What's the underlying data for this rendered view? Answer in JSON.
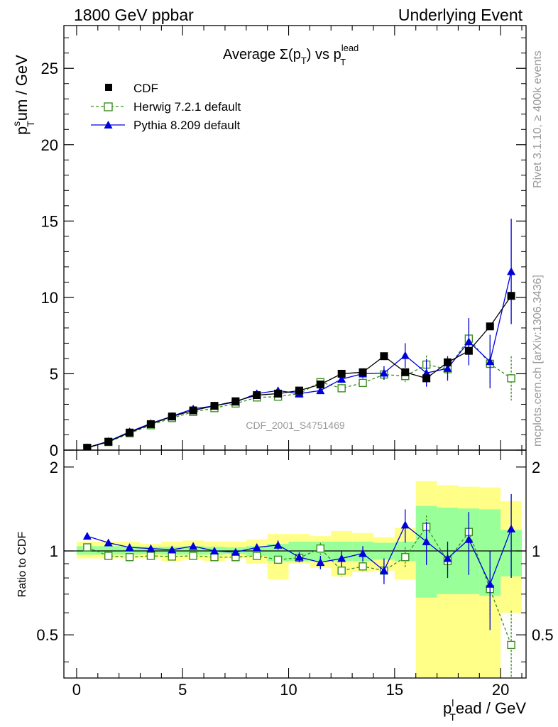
{
  "header": {
    "left": "1800 GeV ppbar",
    "right": "Underlying Event"
  },
  "side_labels": {
    "rivet": "Rivet 3.1.10, ≥ 400k events",
    "mcplots": "mcplots.cern.ch [arXiv:1306.3436]"
  },
  "colors": {
    "data": "#000000",
    "herwig": "#3a8f1e",
    "pythia": "#0000dd",
    "band_inner": "#99ff99",
    "band_outer": "#ffff88"
  },
  "chart_data": [
    {
      "type": "scatter",
      "panel": "main",
      "title_parts": {
        "main": "Average Σ(p",
        "sub_T": "T",
        "mid": ") vs p",
        "sup": "lead",
        "sub2": "T"
      },
      "ylabel_parts": {
        "p": "p",
        "sup": "s",
        "sub": "T",
        "rest": "um / GeV"
      },
      "watermark": "CDF_2001_S4751469",
      "xlim": [
        -0.6,
        21.2
      ],
      "ylim": [
        0,
        27.8
      ],
      "yticks": [
        0,
        5,
        10,
        15,
        20,
        25
      ],
      "legend": {
        "position": "top-left",
        "entries": [
          {
            "key": "data",
            "label": "CDF"
          },
          {
            "key": "herwig",
            "label": "Herwig 7.2.1 default"
          },
          {
            "key": "pythia",
            "label": "Pythia 8.209 default"
          }
        ]
      },
      "x": [
        0.5,
        1.5,
        2.5,
        3.5,
        4.5,
        5.5,
        6.5,
        7.5,
        8.5,
        9.5,
        10.5,
        11.5,
        12.5,
        13.5,
        14.5,
        15.5,
        16.5,
        17.5,
        18.5,
        19.5,
        20.5
      ],
      "series": [
        {
          "key": "data",
          "name": "CDF",
          "marker": "square-filled",
          "values": [
            0.15,
            0.55,
            1.15,
            1.7,
            2.2,
            2.6,
            2.9,
            3.2,
            3.6,
            3.7,
            3.9,
            4.3,
            5.0,
            5.1,
            6.15,
            5.1,
            4.7,
            5.75,
            6.5,
            8.1,
            10.1
          ]
        },
        {
          "key": "herwig",
          "name": "Herwig 7.2.1 default",
          "marker": "square-open",
          "dashed": true,
          "values": [
            0.15,
            0.53,
            1.1,
            1.63,
            2.1,
            2.5,
            2.75,
            3.05,
            3.45,
            3.5,
            3.7,
            4.45,
            4.05,
            4.4,
            4.95,
            4.85,
            5.6,
            5.3,
            7.3,
            5.65,
            4.7
          ],
          "errors": [
            0,
            0,
            0,
            0,
            0,
            0,
            0,
            0,
            0,
            0,
            0.2,
            0.2,
            0.2,
            0.2,
            0.35,
            0.4,
            0.6,
            0.5,
            1.2,
            1.2,
            1.45
          ]
        },
        {
          "key": "pythia",
          "name": "Pythia 8.209 default",
          "marker": "triangle-filled",
          "values": [
            0.17,
            0.58,
            1.2,
            1.75,
            2.22,
            2.7,
            2.9,
            3.15,
            3.7,
            3.9,
            3.7,
            3.9,
            4.65,
            5.0,
            5.05,
            6.2,
            5.05,
            5.35,
            7.1,
            5.8,
            11.7
          ],
          "errors": [
            0,
            0,
            0,
            0,
            0,
            0,
            0,
            0,
            0,
            0.1,
            0.15,
            0.2,
            0.25,
            0.3,
            0.45,
            0.8,
            0.9,
            0.8,
            1.55,
            1.75,
            3.45
          ]
        }
      ]
    },
    {
      "type": "scatter",
      "panel": "ratio",
      "ylabel": "Ratio to CDF",
      "xlabel_parts": {
        "p": "p",
        "sup": "l",
        "sub": "T",
        "rest": "ead / GeV"
      },
      "xlim": [
        -0.6,
        21.2
      ],
      "ylim": [
        0.35,
        2.3
      ],
      "xticks": [
        0,
        5,
        10,
        15,
        20
      ],
      "yticks": [
        0.5,
        1,
        2
      ],
      "reference": 1,
      "band_edges": [
        0,
        1,
        2,
        3,
        4,
        5,
        6,
        7,
        8,
        9,
        10,
        11,
        12,
        13,
        14,
        15,
        16,
        17,
        18,
        19,
        20,
        21
      ],
      "band_inner": [
        [
          0.97,
          1.04
        ],
        [
          0.97,
          1.04
        ],
        [
          0.97,
          1.04
        ],
        [
          0.975,
          1.035
        ],
        [
          0.97,
          1.035
        ],
        [
          0.97,
          1.04
        ],
        [
          0.97,
          1.035
        ],
        [
          0.975,
          1.03
        ],
        [
          0.96,
          1.04
        ],
        [
          0.92,
          1.06
        ],
        [
          0.92,
          1.08
        ],
        [
          0.92,
          1.08
        ],
        [
          0.92,
          1.08
        ],
        [
          0.92,
          1.08
        ],
        [
          0.93,
          1.07
        ],
        [
          0.92,
          1.08
        ],
        [
          0.68,
          1.45
        ],
        [
          0.7,
          1.43
        ],
        [
          0.7,
          1.42
        ],
        [
          0.69,
          1.41
        ],
        [
          0.81,
          1.19
        ]
      ],
      "band_outer": [
        [
          0.94,
          1.08
        ],
        [
          0.94,
          1.08
        ],
        [
          0.94,
          1.08
        ],
        [
          0.94,
          1.06
        ],
        [
          0.92,
          1.08
        ],
        [
          0.93,
          1.09
        ],
        [
          0.92,
          1.08
        ],
        [
          0.94,
          1.08
        ],
        [
          0.9,
          1.1
        ],
        [
          0.79,
          1.15
        ],
        [
          0.9,
          1.15
        ],
        [
          0.87,
          1.13
        ],
        [
          0.81,
          1.18
        ],
        [
          0.84,
          1.16
        ],
        [
          0.85,
          1.12
        ],
        [
          0.79,
          1.21
        ],
        [
          0.35,
          1.78
        ],
        [
          0.35,
          1.72
        ],
        [
          0.35,
          1.7
        ],
        [
          0.35,
          1.69
        ],
        [
          0.6,
          1.51
        ]
      ],
      "x": [
        0.5,
        1.5,
        2.5,
        3.5,
        4.5,
        5.5,
        6.5,
        7.5,
        8.5,
        9.5,
        10.5,
        11.5,
        12.5,
        13.5,
        14.5,
        15.5,
        16.5,
        17.5,
        18.5,
        19.5,
        20.5
      ],
      "series": [
        {
          "key": "herwig",
          "name": "Herwig 7.2.1 default",
          "marker": "square-open",
          "dashed": true,
          "values": [
            1.03,
            0.96,
            0.95,
            0.96,
            0.955,
            0.96,
            0.95,
            0.95,
            0.96,
            0.93,
            0.945,
            1.02,
            0.85,
            0.88,
            0.85,
            0.95,
            1.22,
            0.92,
            1.17,
            0.73,
            0.46
          ],
          "errors": [
            0,
            0,
            0,
            0,
            0,
            0,
            0,
            0,
            0,
            0,
            0.03,
            0.05,
            0.04,
            0.04,
            0.06,
            0.08,
            0.12,
            0.09,
            0.18,
            0.15,
            0.15
          ]
        },
        {
          "key": "pythia",
          "name": "Pythia 8.209 default",
          "marker": "triangle-filled",
          "values": [
            1.13,
            1.07,
            1.03,
            1.02,
            1.01,
            1.04,
            1.0,
            0.99,
            1.03,
            1.05,
            0.95,
            0.91,
            0.94,
            0.98,
            0.85,
            1.24,
            1.08,
            0.94,
            1.1,
            0.76,
            1.2
          ],
          "errors": [
            0,
            0,
            0,
            0,
            0,
            0,
            0,
            0,
            0.02,
            0.04,
            0.04,
            0.05,
            0.06,
            0.06,
            0.09,
            0.17,
            0.19,
            0.14,
            0.28,
            0.24,
            0.4
          ]
        }
      ]
    }
  ]
}
